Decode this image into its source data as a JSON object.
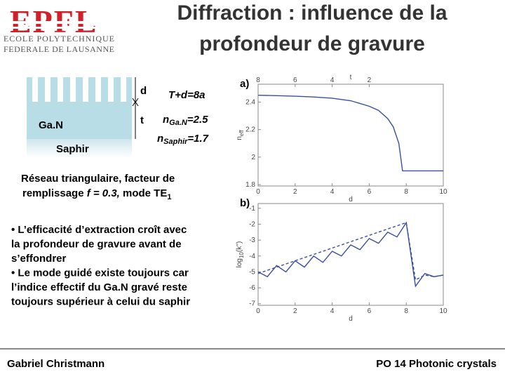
{
  "logo": {
    "mark": "EPFL",
    "line1": "ECOLE POLYTECHNIQUE",
    "line2": "FEDERALE DE LAUSANNE"
  },
  "header": {
    "title1": "Diffraction : influence de la",
    "title2": "profondeur de gravure"
  },
  "diagram": {
    "d": "d",
    "t": "t",
    "gan": "Ga.N",
    "saphir": "Saphir",
    "eq": "T+d=8a",
    "ngan": [
      "n",
      "Ga.N",
      "=2.5"
    ],
    "nsaphir": [
      "n",
      "Saphir",
      "=1.7"
    ]
  },
  "caption": {
    "line1": "Réseau triangulaire, facteur de",
    "line2a": "remplissage ",
    "line2b": "f = 0.3,",
    "line2c": " mode TE",
    "line2d": "1"
  },
  "bullets": [
    "• L’efficacité d’extraction croît avec",
    "la profondeur de gravure avant de",
    "s’effondrer",
    "• Le mode guidé existe toujours car",
    "l’indice effectif du Ga.N gravé reste",
    "toujours supérieur à celui du saphir"
  ],
  "footer": {
    "left": "Gabriel Christmann",
    "right": "PO 14 Photonic crystals"
  },
  "plots": [
    {
      "type": "line",
      "panel": "a)",
      "xlabel": "d",
      "x2label": "t",
      "ylabel": [
        "n",
        "eff"
      ],
      "xlim": [
        0,
        10
      ],
      "xticks": [
        0,
        2,
        4,
        6,
        8,
        10
      ],
      "x2lim": [
        8,
        -2
      ],
      "x2ticks": [
        8,
        6,
        4,
        2
      ],
      "ylim": [
        1.79,
        2.53
      ],
      "yticks": [
        1.8,
        2,
        2.2,
        2.4
      ],
      "x": [
        0,
        1,
        2,
        3,
        4,
        5,
        6,
        6.5,
        7,
        7.3,
        7.6,
        7.8,
        8,
        9,
        10
      ],
      "series": [
        {
          "color": "#3a4fa0",
          "style": "solid",
          "values": [
            2.45,
            2.447,
            2.443,
            2.437,
            2.428,
            2.41,
            2.37,
            2.34,
            2.28,
            2.22,
            2.1,
            1.9,
            1.9,
            1.9,
            1.9
          ]
        }
      ]
    },
    {
      "type": "line",
      "panel": "b)",
      "xlabel": "d",
      "ylabel": [
        "log",
        "10",
        "(k'')"
      ],
      "xlim": [
        0,
        10
      ],
      "xticks": [
        0,
        2,
        4,
        6,
        8,
        10
      ],
      "ylim": [
        -7.1,
        -0.7
      ],
      "yticks": [
        -1,
        -2,
        -3,
        -4,
        -5,
        -6,
        -7
      ],
      "x": [
        0,
        0.5,
        1,
        1.5,
        2,
        2.5,
        3,
        3.5,
        4,
        4.5,
        5,
        5.5,
        6,
        6.5,
        7,
        7.5,
        8,
        8.5,
        9,
        9.5,
        10
      ],
      "series": [
        {
          "color": "#3a4fa0",
          "style": "solid",
          "values": [
            -5,
            -5.3,
            -4.6,
            -5.0,
            -4.3,
            -4.7,
            -4.0,
            -4.4,
            -3.7,
            -4.0,
            -3.3,
            -3.6,
            -2.9,
            -3.2,
            -2.5,
            -2.8,
            -1.9,
            -5.9,
            -5.1,
            -5.3,
            -5.2
          ]
        },
        {
          "color": "#3a4fa0",
          "style": "dashed",
          "values": [
            -5.1,
            -4.9,
            -4.7,
            -4.5,
            -4.3,
            -4.1,
            -3.9,
            -3.7,
            -3.5,
            -3.3,
            -3.1,
            -2.9,
            -2.7,
            -2.5,
            -2.3,
            -2.1,
            -1.9,
            -5.5,
            -5.2,
            -5.3,
            -5.2
          ]
        }
      ]
    }
  ]
}
